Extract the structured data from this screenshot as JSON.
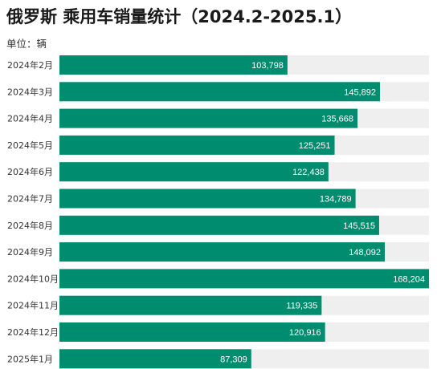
{
  "chart_data": {
    "type": "bar",
    "orientation": "horizontal",
    "title": "俄罗斯 乘用车销量统计（2024.2-2025.1）",
    "unit_label": "单位：辆",
    "categories": [
      "2024年2月",
      "2024年3月",
      "2024年4月",
      "2024年5月",
      "2024年6月",
      "2024年7月",
      "2024年8月",
      "2024年9月",
      "2024年10月",
      "2024年11月",
      "2024年12月",
      "2025年1月"
    ],
    "values": [
      103798,
      145892,
      135668,
      125251,
      122438,
      134789,
      145515,
      148092,
      168204,
      119335,
      120916,
      87309
    ],
    "value_labels": [
      "103,798",
      "145,892",
      "135,668",
      "125,251",
      "122,438",
      "134,789",
      "145,515",
      "148,092",
      "168,204",
      "119,335",
      "120,916",
      "87,309"
    ],
    "xlim": [
      0,
      168204
    ],
    "grid": false,
    "legend": "none",
    "bar_color": "#008c6e",
    "track_color": "#efefef"
  }
}
